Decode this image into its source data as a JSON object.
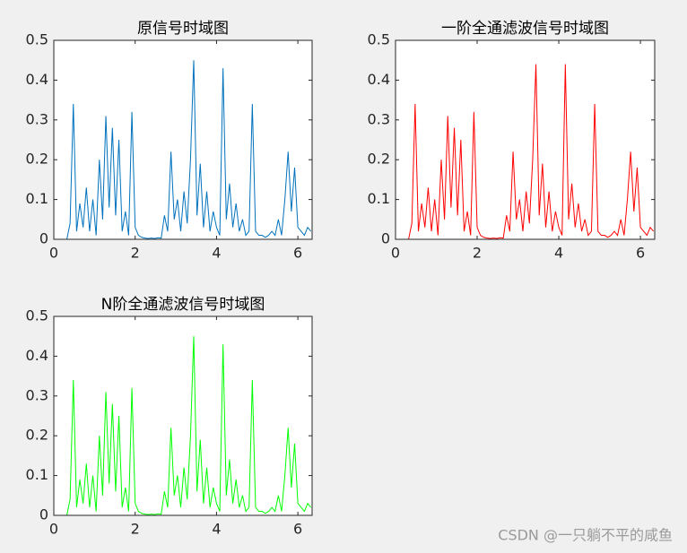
{
  "chart_data": [
    {
      "type": "line",
      "title": "原信号时域图",
      "x": [
        0,
        0.08,
        0.16,
        0.24,
        0.32,
        0.4,
        0.48,
        0.56,
        0.64,
        0.72,
        0.8,
        0.88,
        0.96,
        1.04,
        1.12,
        1.2,
        1.28,
        1.36,
        1.44,
        1.52,
        1.6,
        1.68,
        1.76,
        1.84,
        1.92,
        2,
        2.08,
        2.16,
        2.24,
        2.32,
        2.4,
        2.48,
        2.56,
        2.64,
        2.72,
        2.8,
        2.88,
        2.96,
        3.04,
        3.12,
        3.2,
        3.28,
        3.36,
        3.44,
        3.52,
        3.6,
        3.68,
        3.76,
        3.84,
        3.92,
        4,
        4.08,
        4.16,
        4.24,
        4.32,
        4.4,
        4.48,
        4.56,
        4.64,
        4.72,
        4.8,
        4.88,
        4.96,
        5.04,
        5.12,
        5.2,
        5.28,
        5.36,
        5.44,
        5.52,
        5.6,
        5.68,
        5.76,
        5.84,
        5.92,
        6,
        6.08,
        6.16,
        6.24,
        6.32
      ],
      "series": [
        {
          "color": "#0072bd",
          "values": [
            0,
            0,
            0,
            0,
            0,
            0.04,
            0.34,
            0.02,
            0.09,
            0.03,
            0.13,
            0.02,
            0.1,
            0.01,
            0.2,
            0.05,
            0.31,
            0.08,
            0.28,
            0.06,
            0.25,
            0.02,
            0.07,
            0.01,
            0.32,
            0.03,
            0.01,
            0.005,
            0.003,
            0.002,
            0.003,
            0.002,
            0.004,
            0.003,
            0.06,
            0.02,
            0.22,
            0.05,
            0.1,
            0.02,
            0.12,
            0.04,
            0.2,
            0.45,
            0.06,
            0.19,
            0.03,
            0.12,
            0.02,
            0.07,
            0.03,
            0.01,
            0.43,
            0.05,
            0.14,
            0.03,
            0.09,
            0.02,
            0.05,
            0.01,
            0.02,
            0.34,
            0.02,
            0.01,
            0.01,
            0.005,
            0.01,
            0.02,
            0.01,
            0.05,
            0.01,
            0.1,
            0.22,
            0.07,
            0.18,
            0.03,
            0.02,
            0.01,
            0.03,
            0.02
          ]
        }
      ],
      "xlim": [
        0,
        6.35
      ],
      "ylim": [
        0,
        0.5
      ],
      "xticks": [
        0,
        2,
        4,
        6
      ],
      "yticks": [
        0,
        0.1,
        0.2,
        0.3,
        0.4,
        0.5
      ]
    },
    {
      "type": "line",
      "title": "一阶全通滤波信号时域图",
      "x": [
        0,
        0.08,
        0.16,
        0.24,
        0.32,
        0.4,
        0.48,
        0.56,
        0.64,
        0.72,
        0.8,
        0.88,
        0.96,
        1.04,
        1.12,
        1.2,
        1.28,
        1.36,
        1.44,
        1.52,
        1.6,
        1.68,
        1.76,
        1.84,
        1.92,
        2,
        2.08,
        2.16,
        2.24,
        2.32,
        2.4,
        2.48,
        2.56,
        2.64,
        2.72,
        2.8,
        2.88,
        2.96,
        3.04,
        3.12,
        3.2,
        3.28,
        3.36,
        3.44,
        3.52,
        3.6,
        3.68,
        3.76,
        3.84,
        3.92,
        4,
        4.08,
        4.16,
        4.24,
        4.32,
        4.4,
        4.48,
        4.56,
        4.64,
        4.72,
        4.8,
        4.88,
        4.96,
        5.04,
        5.12,
        5.2,
        5.28,
        5.36,
        5.44,
        5.52,
        5.6,
        5.68,
        5.76,
        5.84,
        5.92,
        6,
        6.08,
        6.16,
        6.24,
        6.32
      ],
      "series": [
        {
          "color": "#ff0000",
          "values": [
            0,
            0,
            0,
            0,
            0,
            0.04,
            0.34,
            0.02,
            0.09,
            0.03,
            0.13,
            0.02,
            0.1,
            0.01,
            0.2,
            0.05,
            0.31,
            0.08,
            0.28,
            0.06,
            0.25,
            0.02,
            0.07,
            0.01,
            0.32,
            0.03,
            0.01,
            0.005,
            0.003,
            0.002,
            0.003,
            0.002,
            0.004,
            0.003,
            0.06,
            0.02,
            0.22,
            0.05,
            0.1,
            0.02,
            0.12,
            0.04,
            0.2,
            0.44,
            0.06,
            0.19,
            0.03,
            0.12,
            0.02,
            0.07,
            0.03,
            0.01,
            0.44,
            0.05,
            0.14,
            0.03,
            0.09,
            0.02,
            0.05,
            0.01,
            0.02,
            0.34,
            0.02,
            0.01,
            0.01,
            0.005,
            0.01,
            0.02,
            0.01,
            0.05,
            0.01,
            0.1,
            0.22,
            0.07,
            0.18,
            0.03,
            0.02,
            0.01,
            0.03,
            0.02
          ]
        }
      ],
      "xlim": [
        0,
        6.35
      ],
      "ylim": [
        0,
        0.5
      ],
      "xticks": [
        0,
        2,
        4,
        6
      ],
      "yticks": [
        0,
        0.1,
        0.2,
        0.3,
        0.4,
        0.5
      ]
    },
    {
      "type": "line",
      "title": "N阶全通滤波信号时域图",
      "x": [
        0,
        0.08,
        0.16,
        0.24,
        0.32,
        0.4,
        0.48,
        0.56,
        0.64,
        0.72,
        0.8,
        0.88,
        0.96,
        1.04,
        1.12,
        1.2,
        1.28,
        1.36,
        1.44,
        1.52,
        1.6,
        1.68,
        1.76,
        1.84,
        1.92,
        2,
        2.08,
        2.16,
        2.24,
        2.32,
        2.4,
        2.48,
        2.56,
        2.64,
        2.72,
        2.8,
        2.88,
        2.96,
        3.04,
        3.12,
        3.2,
        3.28,
        3.36,
        3.44,
        3.52,
        3.6,
        3.68,
        3.76,
        3.84,
        3.92,
        4,
        4.08,
        4.16,
        4.24,
        4.32,
        4.4,
        4.48,
        4.56,
        4.64,
        4.72,
        4.8,
        4.88,
        4.96,
        5.04,
        5.12,
        5.2,
        5.28,
        5.36,
        5.44,
        5.52,
        5.6,
        5.68,
        5.76,
        5.84,
        5.92,
        6,
        6.08,
        6.16,
        6.24,
        6.32
      ],
      "series": [
        {
          "color": "#00ff00",
          "values": [
            0,
            0,
            0,
            0,
            0,
            0.04,
            0.34,
            0.02,
            0.09,
            0.03,
            0.13,
            0.02,
            0.1,
            0.01,
            0.2,
            0.05,
            0.31,
            0.08,
            0.28,
            0.06,
            0.25,
            0.02,
            0.07,
            0.01,
            0.32,
            0.03,
            0.01,
            0.005,
            0.003,
            0.002,
            0.003,
            0.002,
            0.004,
            0.003,
            0.06,
            0.02,
            0.22,
            0.05,
            0.1,
            0.02,
            0.12,
            0.04,
            0.2,
            0.45,
            0.06,
            0.19,
            0.03,
            0.12,
            0.02,
            0.07,
            0.03,
            0.01,
            0.43,
            0.05,
            0.14,
            0.03,
            0.09,
            0.02,
            0.05,
            0.01,
            0.02,
            0.34,
            0.02,
            0.01,
            0.01,
            0.005,
            0.01,
            0.02,
            0.01,
            0.05,
            0.01,
            0.1,
            0.22,
            0.07,
            0.18,
            0.03,
            0.02,
            0.01,
            0.03,
            0.02
          ]
        }
      ],
      "xlim": [
        0,
        6.35
      ],
      "ylim": [
        0,
        0.5
      ],
      "xticks": [
        0,
        2,
        4,
        6
      ],
      "yticks": [
        0,
        0.1,
        0.2,
        0.3,
        0.4,
        0.5
      ]
    }
  ],
  "watermark": "CSDN @一只躺不平的咸鱼"
}
